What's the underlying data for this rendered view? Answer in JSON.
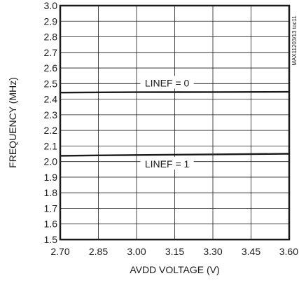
{
  "chart_data": {
    "type": "line",
    "title": "",
    "xlabel": "AVDD VOLTAGE (V)",
    "ylabel": "FREQUENCY (MHz)",
    "xlim": [
      2.7,
      3.6
    ],
    "ylim": [
      1.5,
      3.0
    ],
    "x_ticks": [
      "2.70",
      "2.85",
      "3.00",
      "3.15",
      "3.30",
      "3.45",
      "3.60"
    ],
    "y_ticks": [
      "3.0",
      "2.9",
      "2.8",
      "2.7",
      "2.6",
      "2.5",
      "2.4",
      "2.3",
      "2.2",
      "2.1",
      "2.0",
      "1.9",
      "1.8",
      "1.7",
      "1.6",
      "1.5"
    ],
    "grid": true,
    "series": [
      {
        "name": "LINEF = 0",
        "x": [
          2.7,
          3.0,
          3.3,
          3.6
        ],
        "y": [
          2.442,
          2.445,
          2.446,
          2.447
        ]
      },
      {
        "name": "LINEF = 1",
        "x": [
          2.7,
          3.0,
          3.3,
          3.6
        ],
        "y": [
          2.037,
          2.042,
          2.046,
          2.05
        ]
      }
    ],
    "annotations": [
      {
        "text": "LINEF = 0",
        "x": 3.12,
        "y": 2.5
      },
      {
        "text": "LINEF = 1",
        "x": 3.12,
        "y": 1.98
      }
    ],
    "side_note": "MAX11203/13 toc11"
  }
}
